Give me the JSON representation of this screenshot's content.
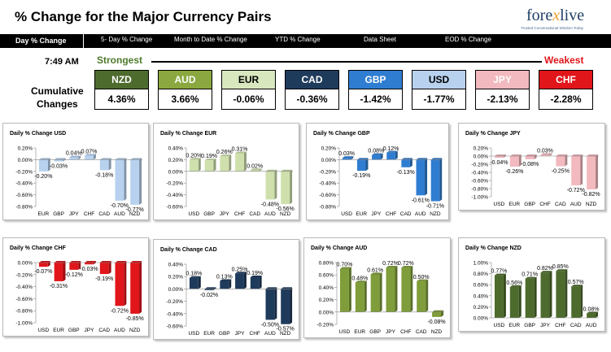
{
  "header": {
    "title": "% Change for the Major Currency Pairs",
    "logo_main": "fore",
    "logo_x": "x",
    "logo_end": "live",
    "logo_sub": "Trusted Conversational Wisdom Today"
  },
  "nav": {
    "items": [
      "Day % Change",
      "5- Day % Change",
      "Month to Date % Change",
      "YTD % Change",
      "Data Sheet",
      "EOD % Change"
    ]
  },
  "summary": {
    "time": "7:49 AM",
    "strongest_label": "Strongest",
    "weakest_label": "Weakest",
    "cumulative_label_1": "Cumulative",
    "cumulative_label_2": "Changes",
    "boxes": [
      {
        "currency": "NZD",
        "value": "4.36%",
        "bg": "#4e6b2e",
        "fg": "#ffffff"
      },
      {
        "currency": "AUD",
        "value": "3.66%",
        "bg": "#8aa83f",
        "fg": "#ffffff"
      },
      {
        "currency": "EUR",
        "value": "-0.06%",
        "bg": "#d9e7bf",
        "fg": "#000000"
      },
      {
        "currency": "CAD",
        "value": "-0.36%",
        "bg": "#1f3b5c",
        "fg": "#ffffff"
      },
      {
        "currency": "GBP",
        "value": "-1.42%",
        "bg": "#2f7dd1",
        "fg": "#ffffff"
      },
      {
        "currency": "USD",
        "value": "-1.77%",
        "bg": "#b7d1ee",
        "fg": "#000000"
      },
      {
        "currency": "JPY",
        "value": "-2.13%",
        "bg": "#f2b9bf",
        "fg": "#ffffff"
      },
      {
        "currency": "CHF",
        "value": "-2.28%",
        "bg": "#e0161b",
        "fg": "#ffffff"
      }
    ]
  },
  "colors": {
    "usd": "#b7d1ee",
    "eur": "#cfe0ad",
    "gbp": "#2f7dd1",
    "jpy": "#f2b9bf",
    "chf": "#e0161b",
    "cad": "#1f3b5c",
    "aud": "#7f9d3a",
    "nzd": "#4e6b2e"
  },
  "chart_data": [
    {
      "type": "bar",
      "title": "Daily % Change USD",
      "categories": [
        "EUR",
        "GBP",
        "JPY",
        "CHF",
        "CAD",
        "AUD",
        "NZD"
      ],
      "values": [
        -0.2,
        -0.03,
        0.04,
        0.07,
        -0.18,
        -0.7,
        -0.77
      ],
      "labels": [
        "-0.20%",
        "-0.03%",
        "0.04%",
        "0.07%",
        "-0.18%",
        "-0.70%",
        "-0.77%"
      ],
      "ylim": [
        -0.8,
        0.2
      ],
      "yticks": [
        "0.20%",
        "0.00%",
        "-0.20%",
        "-0.40%",
        "-0.60%",
        "-0.80%"
      ],
      "color": "#b7d1ee"
    },
    {
      "type": "bar",
      "title": "Daily % Change EUR",
      "categories": [
        "USD",
        "GBP",
        "JPY",
        "CHF",
        "CAD",
        "AUD",
        "NZD"
      ],
      "values": [
        0.2,
        0.19,
        0.26,
        0.31,
        0.02,
        -0.48,
        -0.56
      ],
      "labels": [
        "0.20%",
        "0.19%",
        "0.26%",
        "0.31%",
        "0.02%",
        "-0.48%",
        "-0.56%"
      ],
      "ylim": [
        -0.6,
        0.4
      ],
      "yticks": [
        "0.40%",
        "0.20%",
        "0.00%",
        "-0.20%",
        "-0.40%",
        "-0.60%"
      ],
      "color": "#cfe0ad"
    },
    {
      "type": "bar",
      "title": "Daily % Change GBP",
      "categories": [
        "USD",
        "EUR",
        "JPY",
        "CHF",
        "CAD",
        "AUD",
        "NZD"
      ],
      "values": [
        0.03,
        -0.19,
        0.08,
        0.12,
        -0.13,
        -0.61,
        -0.71
      ],
      "labels": [
        "0.03%",
        "-0.19%",
        "0.08%",
        "0.12%",
        "-0.13%",
        "-0.61%",
        "-0.71%"
      ],
      "ylim": [
        -0.8,
        0.2
      ],
      "yticks": [
        "0.20%",
        "0.00%",
        "-0.20%",
        "-0.40%",
        "-0.60%",
        "-0.80%"
      ],
      "color": "#2f7dd1"
    },
    {
      "type": "bar",
      "title": "Daily % Change JPY",
      "categories": [
        "USD",
        "EUR",
        "GBP",
        "CHF",
        "CAD",
        "AUD",
        "NZD"
      ],
      "values": [
        -0.04,
        -0.26,
        -0.08,
        0.03,
        -0.25,
        -0.72,
        -0.82
      ],
      "labels": [
        "-0.04%",
        "-0.26%",
        "-0.08%",
        "0.03%",
        "-0.25%",
        "-0.72%",
        "-0.82%"
      ],
      "ylim": [
        -1.0,
        0.2
      ],
      "yticks": [
        "0.20%",
        "0.00%",
        "-0.20%",
        "-0.40%",
        "-0.60%",
        "-0.80%",
        "-1.00%"
      ],
      "color": "#f2b9bf"
    },
    {
      "type": "bar",
      "title": "Daily % Change CHF",
      "categories": [
        "USD",
        "EUR",
        "GBP",
        "JPY",
        "CAD",
        "AUD",
        "NZD"
      ],
      "values": [
        -0.07,
        -0.31,
        -0.12,
        -0.03,
        -0.19,
        -0.72,
        -0.85
      ],
      "labels": [
        "-0.07%",
        "-0.31%",
        "-0.12%",
        "-0.03%",
        "-0.19%",
        "-0.72%",
        "-0.85%"
      ],
      "ylim": [
        -1.0,
        0.0
      ],
      "yticks": [
        "0.00%",
        "-0.20%",
        "-0.40%",
        "-0.60%",
        "-0.80%",
        "-1.00%"
      ],
      "color": "#e0161b"
    },
    {
      "type": "bar",
      "title": "Daily % Change CAD",
      "categories": [
        "USD",
        "EUR",
        "GBP",
        "JPY",
        "CHF",
        "AUD",
        "NZD"
      ],
      "values": [
        0.18,
        -0.02,
        0.13,
        0.25,
        0.19,
        -0.5,
        -0.57
      ],
      "labels": [
        "0.18%",
        "-0.02%",
        "0.13%",
        "0.25%",
        "0.19%",
        "-0.50%",
        "-0.57%"
      ],
      "ylim": [
        -0.6,
        0.4
      ],
      "yticks": [
        "0.40%",
        "0.20%",
        "0.00%",
        "-0.20%",
        "-0.40%",
        "-0.60%"
      ],
      "color": "#1f3b5c"
    },
    {
      "type": "bar",
      "title": "Daily % Change AUD",
      "categories": [
        "USD",
        "EUR",
        "GBP",
        "JPY",
        "CHF",
        "CAD",
        "NZD"
      ],
      "values": [
        0.7,
        0.48,
        0.61,
        0.72,
        0.72,
        0.5,
        -0.08
      ],
      "labels": [
        "0.70%",
        "0.48%",
        "0.61%",
        "0.72%",
        "0.72%",
        "0.50%",
        "-0.08%"
      ],
      "ylim": [
        -0.2,
        0.8
      ],
      "yticks": [
        "0.80%",
        "0.60%",
        "0.40%",
        "0.20%",
        "0.00%",
        "-0.20%"
      ],
      "color": "#7f9d3a"
    },
    {
      "type": "bar",
      "title": "Daily % Change NZD",
      "categories": [
        "USD",
        "EUR",
        "GBP",
        "JPY",
        "CHF",
        "CAD",
        "AUD"
      ],
      "values": [
        0.77,
        0.56,
        0.71,
        0.82,
        0.85,
        0.57,
        0.08
      ],
      "labels": [
        "0.77%",
        "0.56%",
        "0.71%",
        "0.82%",
        "0.85%",
        "0.57%",
        "0.08%"
      ],
      "ylim": [
        0.0,
        1.0
      ],
      "yticks": [
        "1.00%",
        "0.80%",
        "0.60%",
        "0.40%",
        "0.20%",
        "0.00%"
      ],
      "color": "#4e6b2e"
    }
  ]
}
